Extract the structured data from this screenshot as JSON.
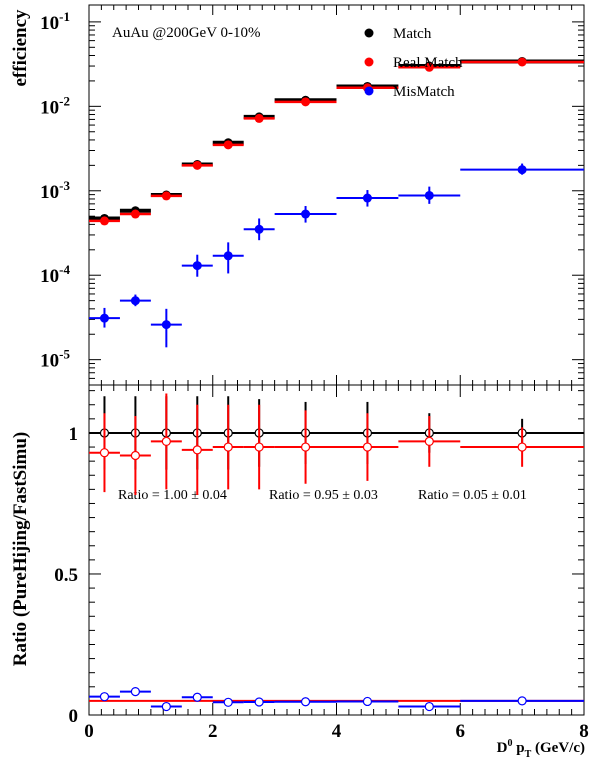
{
  "chart_data": [
    {
      "type": "scatter",
      "ylabel": "efficiency",
      "yscale": "log",
      "xlim": [
        0,
        8
      ],
      "ylim_exp": [
        -5.3,
        -0.8
      ],
      "annotation": "AuAu @200GeV  0-10%",
      "y_tick_labels": [
        {
          "base": "10",
          "exp": "-1"
        },
        {
          "base": "10",
          "exp": "-2"
        },
        {
          "base": "10",
          "exp": "-3"
        },
        {
          "base": "10",
          "exp": "-4"
        },
        {
          "base": "10",
          "exp": "-5"
        }
      ],
      "legend": {
        "placement": "top-right",
        "entries": [
          {
            "label": "Match",
            "color": "#000000"
          },
          {
            "label": "Real Match",
            "color": "#ff0000"
          },
          {
            "label": "MisMatch",
            "color": "#0000ff"
          }
        ]
      },
      "bins": [
        [
          0,
          0.5
        ],
        [
          0.5,
          1
        ],
        [
          1,
          1.5
        ],
        [
          1.5,
          2
        ],
        [
          2,
          2.5
        ],
        [
          2.5,
          3
        ],
        [
          3,
          4
        ],
        [
          4,
          5
        ],
        [
          5,
          6
        ],
        [
          6,
          8
        ]
      ],
      "x": [
        0.25,
        0.75,
        1.25,
        1.75,
        2.25,
        2.75,
        3.5,
        4.5,
        5.5,
        7.0
      ],
      "series": [
        {
          "name": "Match",
          "color": "#000000",
          "values": [
            0.00047,
            0.00058,
            0.00089,
            0.00205,
            0.0037,
            0.0075,
            0.0118,
            0.0172,
            0.03,
            0.034
          ]
        },
        {
          "name": "Real Match",
          "color": "#ff0000",
          "values": [
            0.00044,
            0.00053,
            0.00087,
            0.002,
            0.0035,
            0.0072,
            0.0113,
            0.0166,
            0.029,
            0.0335
          ]
        },
        {
          "name": "MisMatch",
          "color": "#0000ff",
          "values": [
            3.1e-05,
            5e-05,
            2.6e-05,
            0.00013,
            0.00017,
            0.00035,
            0.00053,
            0.00082,
            0.00088,
            0.00178
          ],
          "err_low": [
            2.4e-05,
            4.3e-05,
            1.4e-05,
            9.6e-05,
            0.000105,
            0.00026,
            0.00042,
            0.00065,
            0.0007,
            0.00155
          ],
          "err_high": [
            4.1e-05,
            5.9e-05,
            4e-05,
            0.000175,
            0.000245,
            0.00047,
            0.00066,
            0.00102,
            0.00112,
            0.0021
          ]
        }
      ]
    },
    {
      "type": "scatter",
      "ylabel": "Ratio (PureHijing/FastSimu)",
      "xlabel_main": "D",
      "xlabel_sup": "0",
      "xlabel_mid": " p",
      "xlabel_sub": "T",
      "xlabel_unit": " (GeV/c)",
      "xlim": [
        0,
        8
      ],
      "ylim": [
        0,
        1.17
      ],
      "x_tick_labels": [
        "0",
        "2",
        "4",
        "6",
        "8"
      ],
      "y_tick_labels": [
        "0",
        "0.5",
        "1"
      ],
      "ratio_text": [
        "Ratio = 1.00 ± 0.04",
        "Ratio = 0.95 ± 0.03",
        "Ratio = 0.05 ± 0.01"
      ],
      "fit_lines": [
        {
          "color": "#000000",
          "value": 1.0
        },
        {
          "color": "#ff0000",
          "value": 0.05
        }
      ],
      "x": [
        0.25,
        0.75,
        1.25,
        1.75,
        2.25,
        2.75,
        3.5,
        4.5,
        5.5,
        7.0
      ],
      "series": [
        {
          "name": "Match",
          "color": "#000000",
          "values": [
            1.0,
            1.0,
            1.0,
            1.0,
            1.0,
            1.0,
            1.0,
            1.0,
            1.0,
            1.0
          ],
          "err": [
            0.13,
            0.13,
            0.13,
            0.13,
            0.13,
            0.12,
            0.11,
            0.11,
            0.07,
            0.05
          ]
        },
        {
          "name": "Real Match",
          "color": "#ff0000",
          "values": [
            0.93,
            0.92,
            0.97,
            0.94,
            0.95,
            0.95,
            0.95,
            0.95,
            0.97,
            0.95
          ],
          "err": [
            0.14,
            0.14,
            0.17,
            0.16,
            0.15,
            0.15,
            0.13,
            0.12,
            0.09,
            0.07
          ]
        },
        {
          "name": "MisMatch",
          "color": "#0000ff",
          "values": [
            0.065,
            0.083,
            0.03,
            0.063,
            0.045,
            0.046,
            0.047,
            0.048,
            0.03,
            0.05
          ],
          "err": [
            0.015,
            0.015,
            0.01,
            0.015,
            0.012,
            0.01,
            0.01,
            0.01,
            0.01,
            0.01
          ]
        }
      ]
    }
  ]
}
